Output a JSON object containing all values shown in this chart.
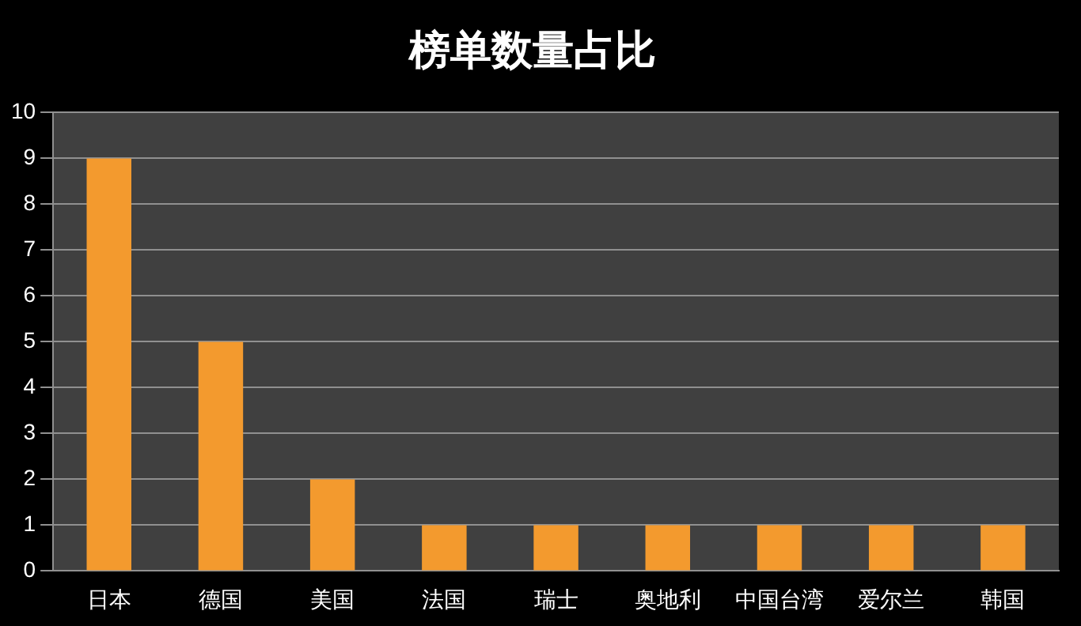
{
  "chart_data": {
    "type": "bar",
    "title": "榜单数量占比",
    "categories": [
      "日本",
      "德国",
      "美国",
      "法国",
      "瑞士",
      "奥地利",
      "中国台湾",
      "爱尔兰",
      "韩国"
    ],
    "values": [
      9,
      5,
      2,
      1,
      1,
      1,
      1,
      1,
      1
    ],
    "color": "#f39a2e",
    "ylim": [
      0,
      10
    ],
    "yticks": [
      0,
      1,
      2,
      3,
      4,
      5,
      6,
      7,
      8,
      9,
      10
    ],
    "grid": "y",
    "legend": false
  }
}
